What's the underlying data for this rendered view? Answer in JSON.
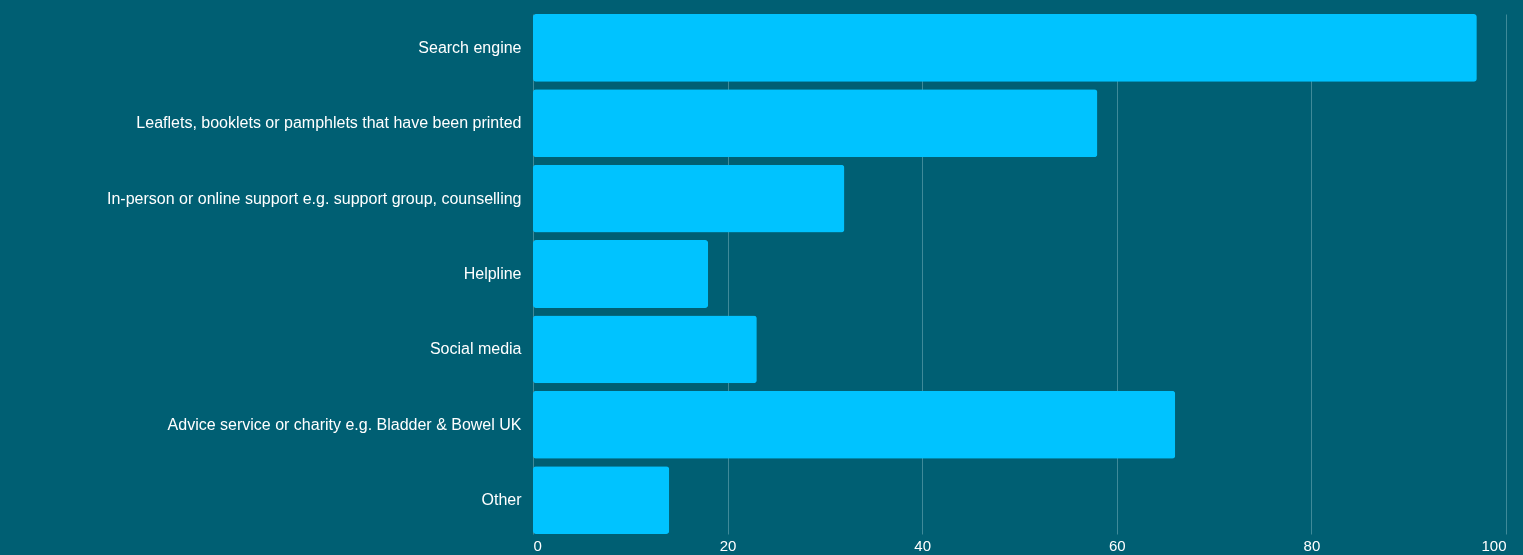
{
  "chart_data": {
    "type": "bar",
    "orientation": "horizontal",
    "categories": [
      "Search engine",
      "Leaflets, booklets or pamphlets that have been printed",
      "In-person or online support e.g. support group, counselling",
      "Helpline",
      "Social media",
      "Advice service or charity e.g. Bladder & Bowel UK",
      "Other"
    ],
    "values": [
      97,
      58,
      32,
      18,
      23,
      66,
      14
    ],
    "color": "#00c3ff",
    "xlim": [
      0,
      100
    ],
    "xticks": [
      0,
      20,
      40,
      60,
      80,
      100
    ],
    "grid": "x"
  }
}
